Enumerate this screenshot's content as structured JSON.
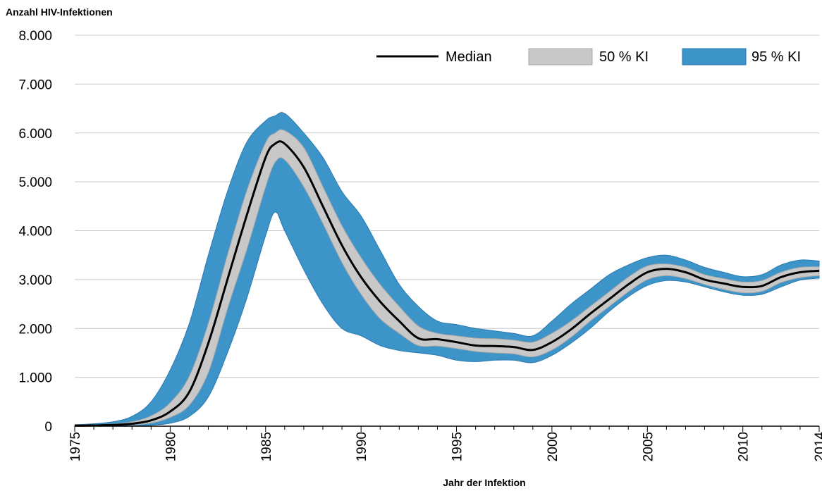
{
  "chart_data": {
    "type": "area",
    "title": "",
    "ylabel": "Anzahl HIV-Infektionen",
    "xlabel": "Jahr der Infektion",
    "xlim": [
      1975,
      2014
    ],
    "ylim": [
      0,
      8000
    ],
    "x_ticks": [
      1975,
      1980,
      1985,
      1990,
      1995,
      2000,
      2005,
      2010,
      2014
    ],
    "x_tick_labels": [
      "1975",
      "1980",
      "1985",
      "1990",
      "1995",
      "2000",
      "2005",
      "2010",
      "2014"
    ],
    "y_ticks": [
      0,
      1000,
      2000,
      3000,
      4000,
      5000,
      6000,
      7000,
      8000
    ],
    "y_tick_labels": [
      "0",
      "1.000",
      "2.000",
      "3.000",
      "4.000",
      "5.000",
      "6.000",
      "7.000",
      "8.000"
    ],
    "grid": "horizontal",
    "legend_position": "top-right",
    "legend": [
      "Median",
      "50 % KI",
      "95 % KI"
    ],
    "colors": {
      "median": "#000000",
      "ci50": "#c8c8c8",
      "ci50_edge": "#a8a8a8",
      "ci95": "#3d94c8",
      "ci95_edge": "#2a7ab0",
      "grid": "#c8c8c8"
    },
    "x": [
      1975,
      1976,
      1977,
      1978,
      1979,
      1980,
      1981,
      1982,
      1983,
      1984,
      1985,
      1985.5,
      1986,
      1987,
      1988,
      1989,
      1990,
      1991,
      1992,
      1993,
      1994,
      1995,
      1996,
      1997,
      1998,
      1999,
      2000,
      2001,
      2002,
      2003,
      2004,
      2005,
      2006,
      2007,
      2008,
      2009,
      2010,
      2011,
      2012,
      2013,
      2014
    ],
    "series": [
      {
        "name": "Median",
        "values": [
          10,
          15,
          25,
          50,
          120,
          300,
          700,
          1700,
          3000,
          4300,
          5500,
          5780,
          5780,
          5300,
          4500,
          3700,
          3050,
          2550,
          2150,
          1800,
          1780,
          1720,
          1650,
          1640,
          1620,
          1560,
          1720,
          1980,
          2300,
          2600,
          2900,
          3150,
          3220,
          3150,
          3000,
          2920,
          2850,
          2870,
          3050,
          3150,
          3180
        ]
      },
      {
        "name": "50 % KI",
        "upper": [
          15,
          25,
          45,
          90,
          210,
          480,
          1020,
          2100,
          3500,
          4800,
          5800,
          6000,
          6050,
          5700,
          4900,
          4100,
          3450,
          2900,
          2450,
          2050,
          1900,
          1850,
          1800,
          1790,
          1760,
          1720,
          1900,
          2150,
          2450,
          2750,
          3050,
          3280,
          3320,
          3250,
          3100,
          3020,
          2950,
          2980,
          3150,
          3250,
          3260
        ],
        "lower": [
          5,
          8,
          12,
          25,
          65,
          180,
          430,
          1100,
          2400,
          3600,
          4900,
          5400,
          5450,
          4900,
          4150,
          3350,
          2700,
          2200,
          1900,
          1650,
          1640,
          1590,
          1530,
          1500,
          1480,
          1420,
          1560,
          1820,
          2150,
          2450,
          2750,
          3000,
          3080,
          3020,
          2900,
          2800,
          2730,
          2760,
          2940,
          3040,
          3080
        ]
      },
      {
        "name": "95 % KI",
        "upper": [
          30,
          50,
          90,
          200,
          500,
          1150,
          2100,
          3500,
          4800,
          5800,
          6250,
          6350,
          6400,
          6000,
          5500,
          4800,
          4300,
          3600,
          2900,
          2450,
          2150,
          2080,
          2000,
          1950,
          1900,
          1850,
          2150,
          2500,
          2800,
          3100,
          3300,
          3450,
          3500,
          3400,
          3250,
          3150,
          3060,
          3100,
          3300,
          3400,
          3380
        ],
        "lower": [
          0,
          2,
          4,
          8,
          20,
          60,
          200,
          600,
          1500,
          2600,
          3900,
          4380,
          4000,
          3200,
          2500,
          2000,
          1850,
          1650,
          1550,
          1500,
          1450,
          1350,
          1320,
          1350,
          1350,
          1300,
          1450,
          1700,
          2000,
          2350,
          2650,
          2880,
          2980,
          2950,
          2850,
          2750,
          2680,
          2700,
          2850,
          2990,
          3030
        ]
      }
    ]
  }
}
